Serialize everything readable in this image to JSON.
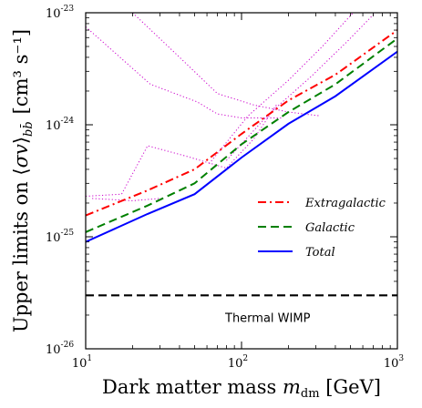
{
  "chart_data": {
    "type": "line",
    "title": "",
    "xlabel": "Dark matter mass $m_{\\rm dm}$ [GeV]",
    "xlabel_parts": {
      "main": "Dark matter mass ",
      "symbol": "m",
      "sub": "dm",
      "unit": " [GeV]"
    },
    "ylabel": "Upper limits on ⟨σv⟩_{b b̄} [cm³ s⁻¹]",
    "ylabel_parts": {
      "main": "Upper limits on ",
      "bracket_open": "⟨",
      "symbol": "σv",
      "bracket_close": "⟩",
      "sub": "bb̄",
      "unit": "[cm³ s⁻¹]"
    },
    "x_scale": "log",
    "y_scale": "log",
    "xlim": [
      10,
      1000
    ],
    "ylim": [
      1e-26,
      1e-23
    ],
    "x_ticks": [
      {
        "value": 10,
        "label": "10",
        "exp": "1"
      },
      {
        "value": 100,
        "label": "10",
        "exp": "2"
      },
      {
        "value": 1000,
        "label": "10",
        "exp": "3"
      }
    ],
    "y_ticks": [
      {
        "value": 1e-26,
        "label": "10",
        "exp": "-26"
      },
      {
        "value": 1e-25,
        "label": "10",
        "exp": "-25"
      },
      {
        "value": 1e-24,
        "label": "10",
        "exp": "-24"
      },
      {
        "value": 1e-23,
        "label": "10",
        "exp": "-23"
      }
    ],
    "grid": false,
    "legend_position": "right-middle",
    "series": [
      {
        "name": "Extragalactic",
        "color": "#ff0000",
        "style": "dashdot",
        "x": [
          10,
          25,
          50,
          100,
          200,
          400,
          1000
        ],
        "y": [
          1.55e-25,
          2.6e-25,
          4e-25,
          8.3e-25,
          1.65e-24,
          2.8e-24,
          7e-24
        ]
      },
      {
        "name": "Galactic",
        "color": "#008000",
        "style": "dashed",
        "x": [
          10,
          25,
          50,
          100,
          200,
          400,
          1000
        ],
        "y": [
          1.1e-25,
          1.9e-25,
          3e-25,
          6.7e-25,
          1.3e-24,
          2.3e-24,
          5.9e-24
        ]
      },
      {
        "name": "Total",
        "color": "#0000ff",
        "style": "solid",
        "x": [
          10,
          25,
          50,
          100,
          200,
          400,
          1000
        ],
        "y": [
          9e-26,
          1.6e-25,
          2.4e-25,
          5.1e-25,
          1.02e-24,
          1.8e-24,
          4.5e-24
        ]
      }
    ],
    "reference_lines": [
      {
        "label": "Thermal WIMP",
        "y": 3e-26,
        "color": "#000000",
        "style": "dashed"
      }
    ],
    "background_curves": [
      {
        "color": "#cc00cc",
        "style": "dotted",
        "x": [
          10,
          26,
          52,
          70,
          100,
          180
        ],
        "y": [
          7.5e-24,
          2.3e-24,
          1.6e-24,
          1.25e-24,
          1.15e-24,
          1.15e-24
        ]
      },
      {
        "color": "#cc00cc",
        "style": "dotted",
        "x": [
          20,
          40,
          70,
          120,
          200,
          320
        ],
        "y": [
          1e-23,
          4e-24,
          1.9e-24,
          1.5e-24,
          1.3e-24,
          1.2e-24
        ]
      },
      {
        "color": "#cc00cc",
        "style": "dotted",
        "x": [
          10,
          17,
          25,
          45,
          80,
          120,
          170
        ],
        "y": [
          2.3e-25,
          2.4e-25,
          6.5e-25,
          5.2e-25,
          4.1e-25,
          7.5e-25,
          1.55e-24
        ]
      },
      {
        "color": "#cc00cc",
        "style": "dotted",
        "x": [
          11,
          20,
          30
        ],
        "y": [
          2.2e-25,
          2.1e-25,
          2.2e-25
        ]
      },
      {
        "color": "#cc00cc",
        "style": "dotted",
        "x": [
          62,
          110,
          200,
          330,
          520
        ],
        "y": [
          4.5e-25,
          1.2e-24,
          2.5e-24,
          5e-24,
          1e-23
        ]
      },
      {
        "color": "#cc00cc",
        "style": "dotted",
        "x": [
          80,
          150,
          280,
          480,
          720
        ],
        "y": [
          4.8e-25,
          1.25e-24,
          2.7e-24,
          5.6e-24,
          1e-23
        ]
      }
    ]
  }
}
